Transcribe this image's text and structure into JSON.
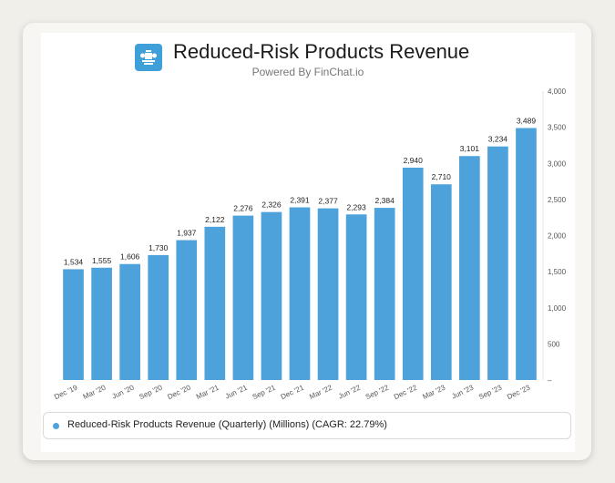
{
  "header": {
    "title": "Reduced-Risk Products Revenue",
    "subtitle": "Powered By FinChat.io",
    "logo_icon": "company-crest-icon"
  },
  "colors": {
    "bar": "#4ea2dc",
    "logo_bg": "#3f9fd8",
    "axis_text": "#555555"
  },
  "chart_data": {
    "type": "bar",
    "title": "Reduced-Risk Products Revenue",
    "categories": [
      "Dec '19",
      "Mar '20",
      "Jun '20",
      "Sep '20",
      "Dec '20",
      "Mar '21",
      "Jun '21",
      "Sep '21",
      "Dec '21",
      "Mar '22",
      "Jun '22",
      "Sep '22",
      "Dec '22",
      "Mar '23",
      "Jun '23",
      "Sep '23",
      "Dec '23"
    ],
    "values": [
      1534,
      1555,
      1606,
      1730,
      1937,
      2122,
      2276,
      2326,
      2391,
      2377,
      2293,
      2384,
      2940,
      2710,
      3101,
      3234,
      3489
    ],
    "value_labels": [
      "1,534",
      "1,555",
      "1,606",
      "1,730",
      "1,937",
      "2,122",
      "2,276",
      "2,326",
      "2,391",
      "2,377",
      "2,293",
      "2,384",
      "2,940",
      "2,710",
      "3,101",
      "3,234",
      "3,489"
    ],
    "y_ticks": [
      0,
      500,
      1000,
      1500,
      2000,
      2500,
      3000,
      3500,
      4000
    ],
    "y_tick_labels": [
      "–",
      "500",
      "1,000",
      "1,500",
      "2,000",
      "2,500",
      "3,000",
      "3,500",
      "4,000"
    ],
    "ylim": [
      0,
      4000
    ],
    "y_axis_side": "right",
    "grid": false,
    "legend_position": "bottom",
    "series": [
      {
        "name": "Reduced-Risk Products Revenue (Quarterly) (Millions) (CAGR: 22.79%)",
        "values": [
          1534,
          1555,
          1606,
          1730,
          1937,
          2122,
          2276,
          2326,
          2391,
          2377,
          2293,
          2384,
          2940,
          2710,
          3101,
          3234,
          3489
        ]
      }
    ]
  },
  "legend": {
    "label": "Reduced-Risk Products Revenue (Quarterly) (Millions) (CAGR: 22.79%)"
  }
}
